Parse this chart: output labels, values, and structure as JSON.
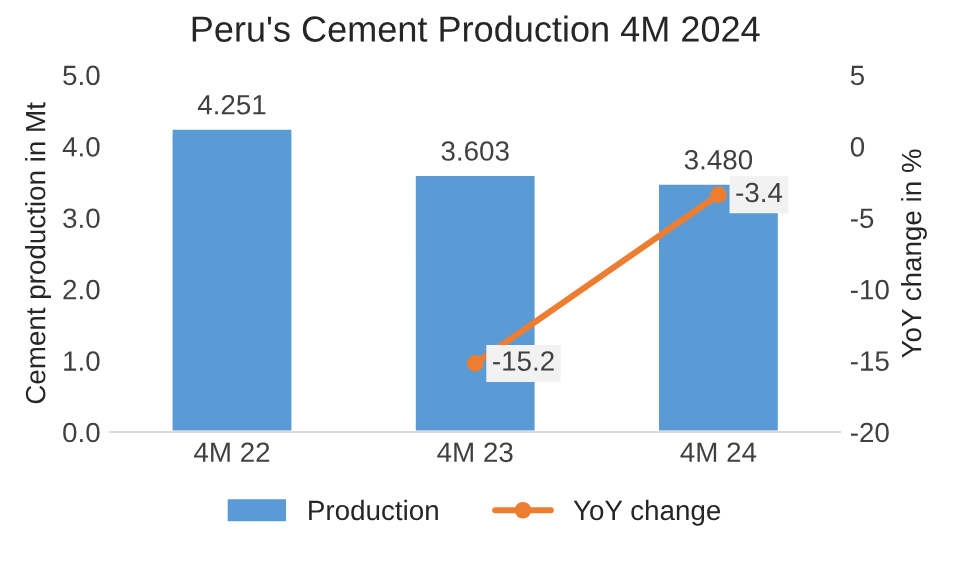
{
  "chart_data": {
    "type": "bar",
    "title": "Peru's Cement Production 4M 2024",
    "ylabel": "Cement production in Mt",
    "y2label": "YoY change in %",
    "categories": [
      "4M 22",
      "4M 23",
      "4M 24"
    ],
    "series": [
      {
        "name": "Production",
        "color": "#5b9bd5",
        "values": [
          4.251,
          3.603,
          3.48
        ],
        "value_labels": [
          "4.251",
          "3.603",
          "3.480"
        ]
      },
      {
        "name": "YoY change",
        "type": "line",
        "axis": "y2",
        "color": "#ed7d31",
        "values": [
          null,
          -15.2,
          -3.4
        ],
        "value_labels": [
          null,
          "-15.2",
          "-3.4"
        ],
        "marker": "circle"
      }
    ],
    "ylim": [
      0,
      5
    ],
    "yticks": [
      {
        "value": 0,
        "label": "0.0"
      },
      {
        "value": 1,
        "label": "1.0"
      },
      {
        "value": 2,
        "label": "2.0"
      },
      {
        "value": 3,
        "label": "3.0"
      },
      {
        "value": 4,
        "label": "4.0"
      },
      {
        "value": 5,
        "label": "5.0"
      }
    ],
    "y2lim": [
      -20,
      5
    ],
    "y2ticks": [
      -20,
      -15,
      -10,
      -5,
      0,
      5
    ],
    "legend": "bottom",
    "grid": false
  }
}
